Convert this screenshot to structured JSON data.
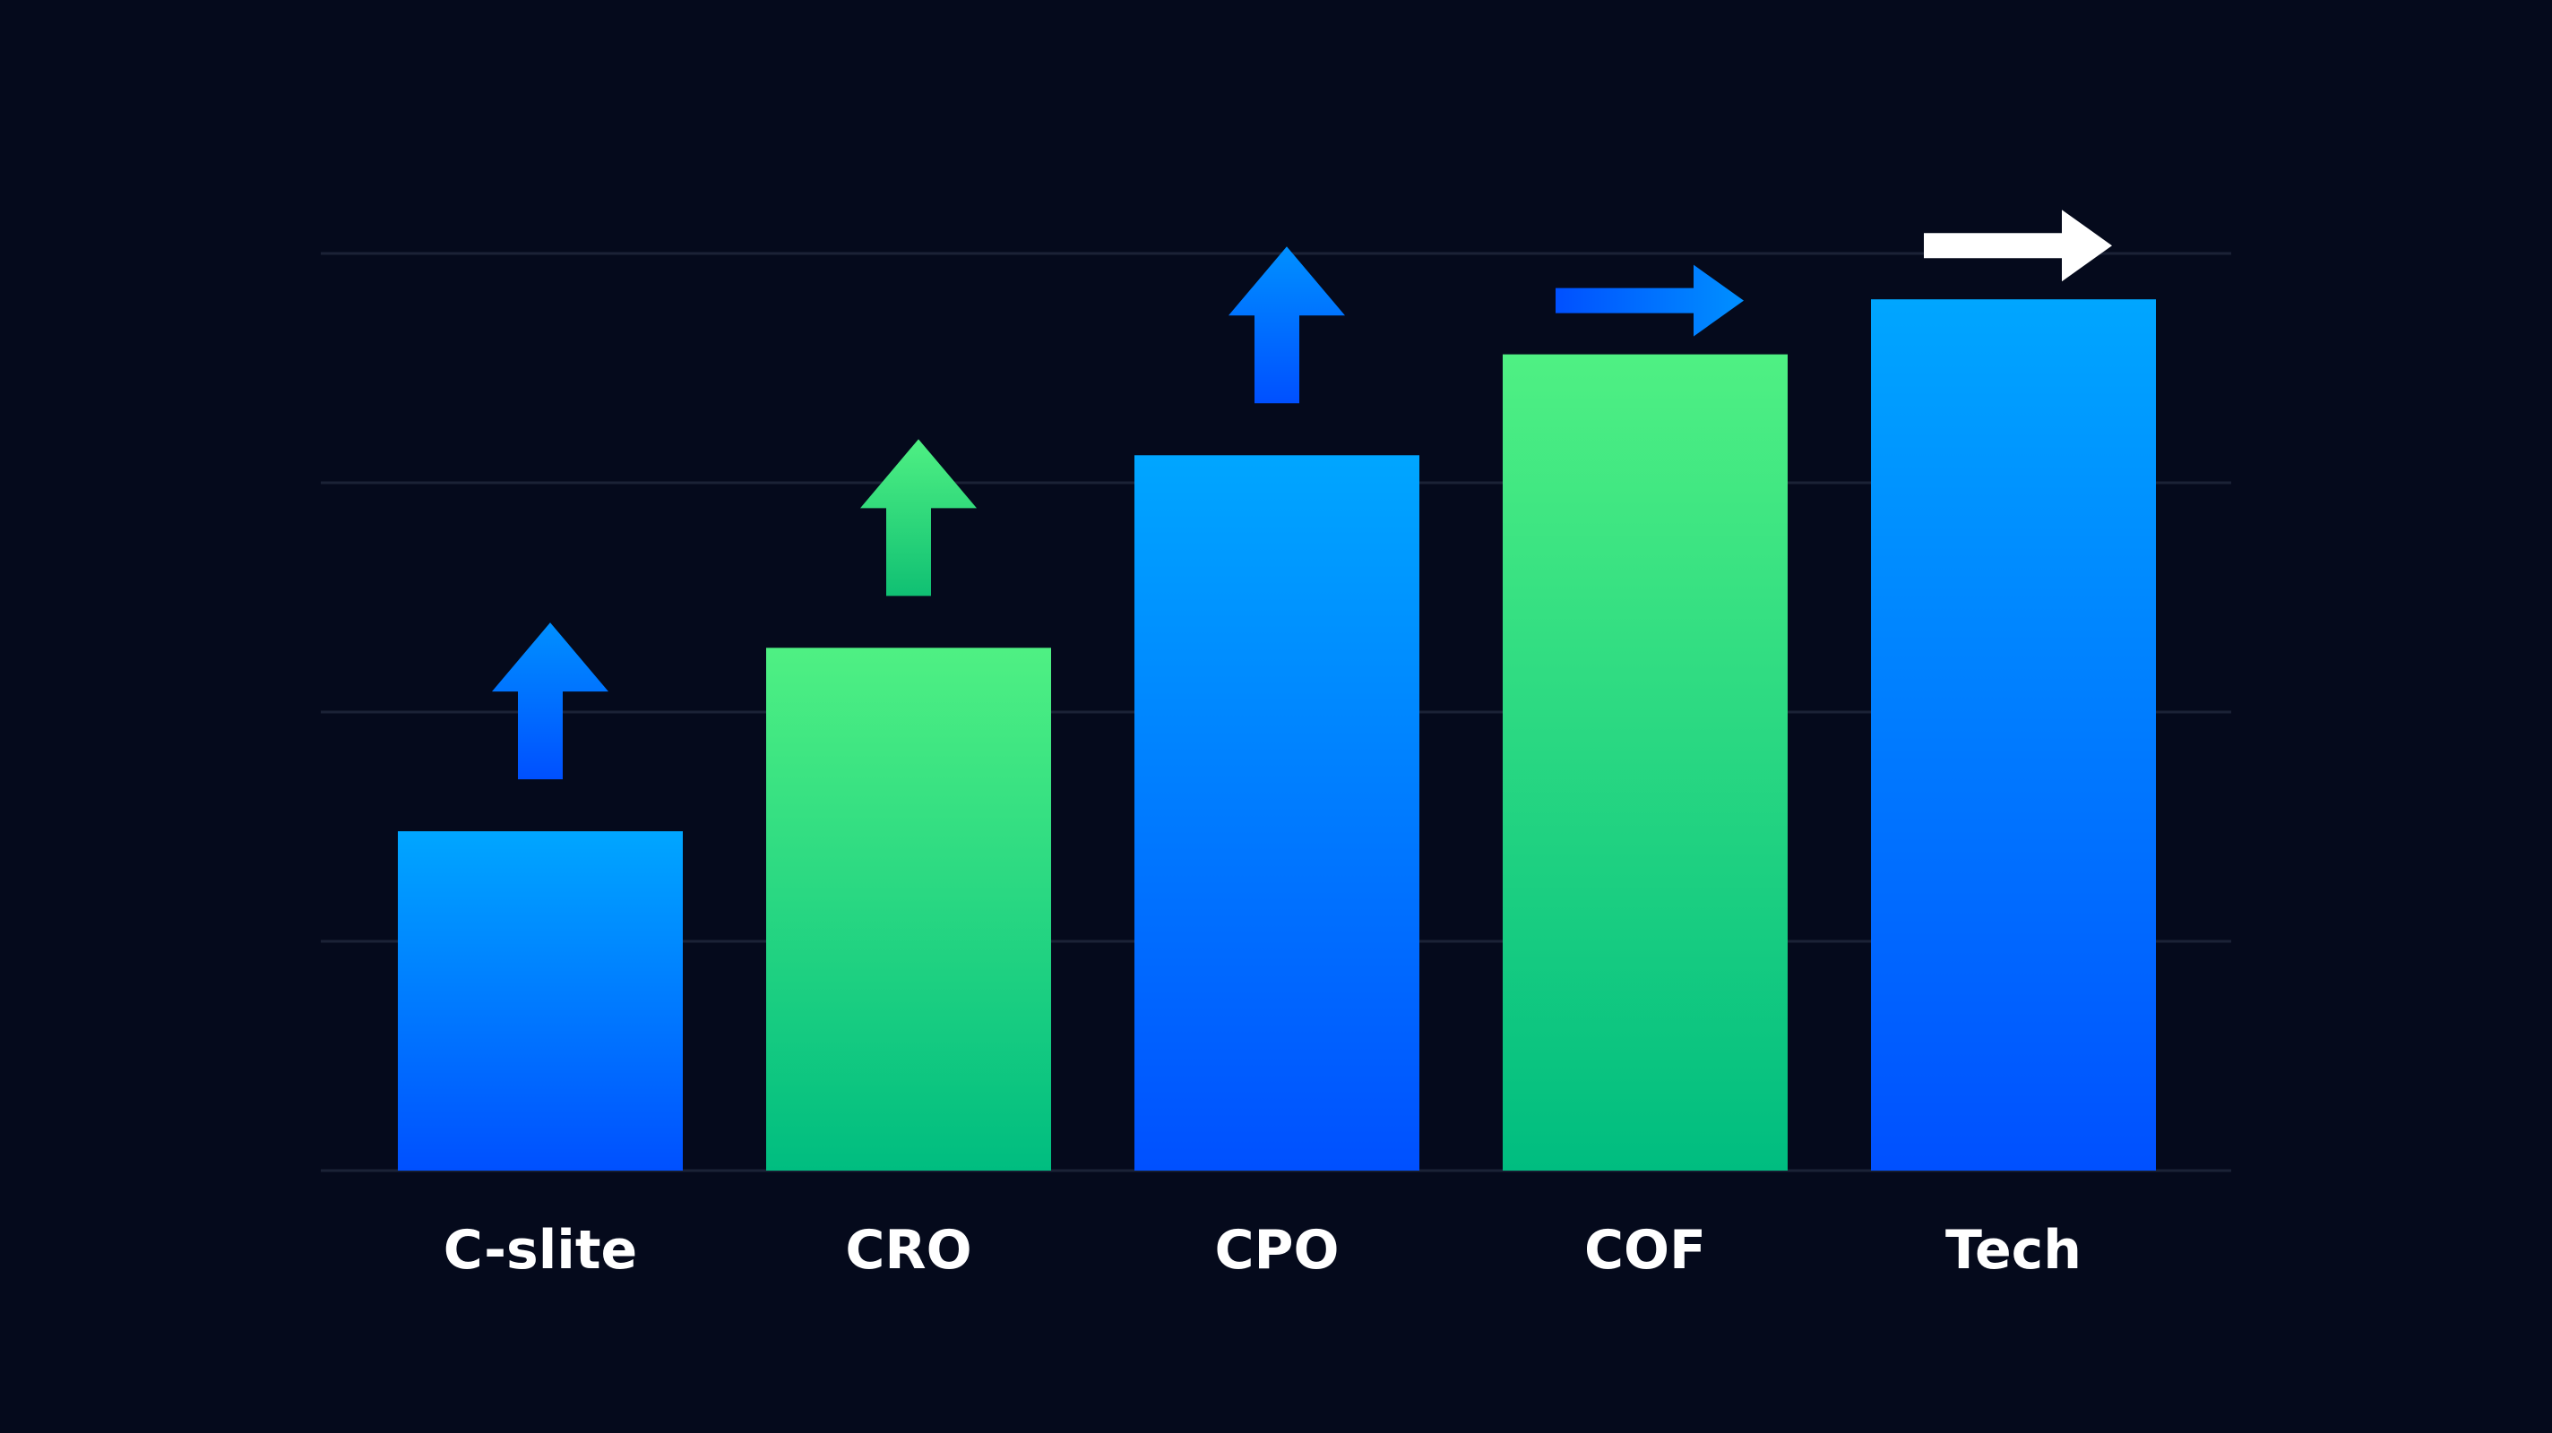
{
  "colors": {
    "background": "#050a1c",
    "gridline": "#1b2236",
    "label": "#ffffff",
    "blue_top": "#00a6ff",
    "blue_bottom": "#0050ff",
    "green_top": "#4ff083",
    "green_bottom": "#00bd80",
    "arrow_blue_top": "#0090ff",
    "arrow_blue_bottom": "#0050ff",
    "arrow_green_top": "#4ff083",
    "arrow_green_bottom": "#10c073",
    "arrow_white": "#ffffff"
  },
  "chart_data": {
    "type": "bar",
    "title": "",
    "xlabel": "",
    "ylabel": "",
    "categories": [
      "C-slite",
      "CRO",
      "CPO",
      "COF",
      "Tech"
    ],
    "values": [
      37,
      57,
      78,
      89,
      95
    ],
    "bar_colors": [
      "blue",
      "green",
      "blue",
      "green",
      "blue"
    ],
    "trend_markers": [
      {
        "category": "C-slite",
        "direction": "up",
        "color": "blue"
      },
      {
        "category": "CRO",
        "direction": "up",
        "color": "green"
      },
      {
        "category": "CPO",
        "direction": "up",
        "color": "blue"
      },
      {
        "category": "COF",
        "direction": "right",
        "color": "blue"
      },
      {
        "category": "Tech",
        "direction": "right",
        "color": "white"
      }
    ],
    "ylim": [
      0,
      100
    ],
    "gridlines": [
      25,
      50,
      75,
      100
    ],
    "grid": true,
    "legend": "none"
  }
}
